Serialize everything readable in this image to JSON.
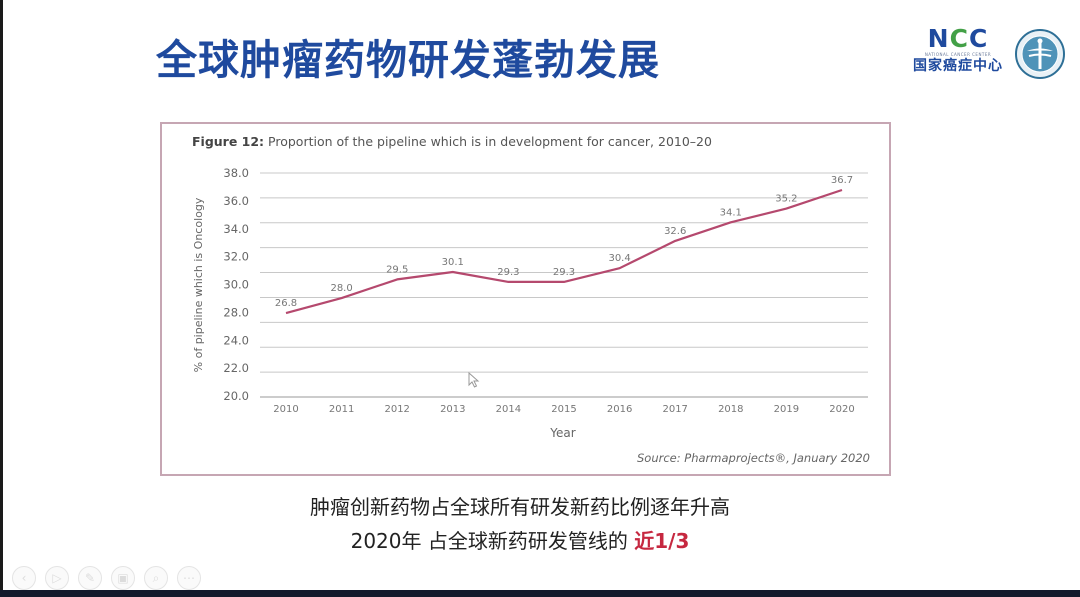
{
  "slide": {
    "title": "全球肿瘤药物研发蓬勃发展",
    "logo": {
      "word_n": "N",
      "word_c1": "C",
      "word_c2": "C",
      "subtitle": "NATIONAL CANCER CENTER",
      "chinese_name": "国家癌症中心",
      "emblem_icon": "medical-emblem-icon"
    },
    "summary_line1": "肿瘤创新药物占全球所有研发新药比例逐年升高",
    "summary_line2_prefix": "2020年 占全球新药研发管线的 ",
    "summary_line2_highlight": "近1/3",
    "highlight_color": "#c62840",
    "title_color": "#1f4a9e"
  },
  "figure": {
    "caption_bold": "Figure 12:",
    "caption_text": " Proportion of the pipeline which is in development for cancer, 2010–20",
    "source": "Source: Pharmaprojects®, January 2020",
    "frame_color": "#c6a6b3",
    "line_color": "#b5496e"
  },
  "chart_data": {
    "type": "line",
    "title": "Figure 12: Proportion of the pipeline which is in development for cancer, 2010–20",
    "xlabel": "Year",
    "ylabel": "% of pipeline which is Oncology",
    "categories": [
      "2010",
      "2011",
      "2012",
      "2013",
      "2014",
      "2015",
      "2016",
      "2017",
      "2018",
      "2019",
      "2020"
    ],
    "series": [
      {
        "name": "% of pipeline which is Oncology",
        "values": [
          26.8,
          28.0,
          29.5,
          30.1,
          29.3,
          29.3,
          30.4,
          32.6,
          34.1,
          35.2,
          36.7
        ]
      }
    ],
    "data_labels": [
      "26.8",
      "28.0",
      "29.5",
      "30.1",
      "29.3",
      "29.3",
      "30.4",
      "32.6",
      "34.1",
      "35.2",
      "36.7"
    ],
    "y_tick_labels": [
      "38.0",
      "36.0",
      "34.0",
      "32.0",
      "30.0",
      "28.0",
      "24.0",
      "22.0",
      "20.0"
    ],
    "ylim": [
      20,
      38
    ],
    "grid": true,
    "legend": "none",
    "source": "Source: Pharmaprojects®, January 2020"
  },
  "toolbar": {
    "buttons": [
      {
        "name": "previous-slide-button",
        "glyph": "‹"
      },
      {
        "name": "next-slide-button",
        "glyph": "▷"
      },
      {
        "name": "pen-tool-button",
        "glyph": "✎"
      },
      {
        "name": "slides-overview-button",
        "glyph": "▣"
      },
      {
        "name": "zoom-button",
        "glyph": "⌕"
      },
      {
        "name": "more-options-button",
        "glyph": "⋯"
      }
    ]
  }
}
